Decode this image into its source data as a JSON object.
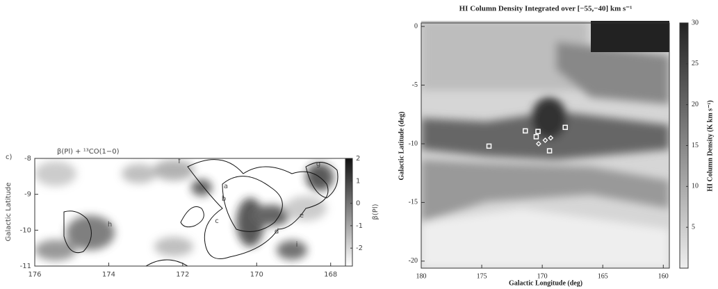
{
  "chart_data": [
    {
      "type": "heatmap",
      "panel_label": "c)",
      "title": "β(Pl) + ¹³CO(1−0)",
      "y_label": "Galactic Latitude",
      "xlim": [
        176,
        167.6
      ],
      "xticks": [
        176,
        174,
        172,
        170,
        168
      ],
      "ylim": [
        -11,
        -8
      ],
      "yticks": [
        -11,
        -10,
        -9,
        -8
      ],
      "colorbar_label": "β(Pl)",
      "clim": [
        -2.8,
        2
      ],
      "cticks": [
        2,
        1,
        0,
        -1,
        -2
      ],
      "annotations": [
        "a",
        "b",
        "c",
        "d",
        "e",
        "f",
        "g",
        "h",
        "i"
      ]
    },
    {
      "type": "heatmap",
      "title": "HI Column Density Integrated over [−55,−40] km s⁻¹",
      "x_label": "Galactic Longitude (deg)",
      "y_label": "Galactic Latitude (deg)",
      "xlim": [
        180,
        159.5
      ],
      "xticks": [
        180,
        175,
        170,
        165,
        160
      ],
      "ylim": [
        -20.6,
        0.3
      ],
      "yticks": [
        0,
        -5,
        -10,
        -15,
        -20
      ],
      "colorbar_label": "HI Column Density (K km s⁻¹)",
      "clim": [
        0,
        30
      ],
      "cticks": [
        5,
        10,
        15,
        20,
        25,
        30
      ],
      "squares": {
        "x": [
          174.4,
          171.4,
          170.35,
          170.5,
          168.1,
          169.4
        ],
        "y": [
          -10.2,
          -8.9,
          -8.95,
          -9.4,
          -8.6,
          -10.6
        ]
      },
      "diamonds": {
        "x": [
          170.3,
          169.75,
          169.3
        ],
        "y": [
          -10.0,
          -9.7,
          -9.5
        ]
      }
    }
  ]
}
